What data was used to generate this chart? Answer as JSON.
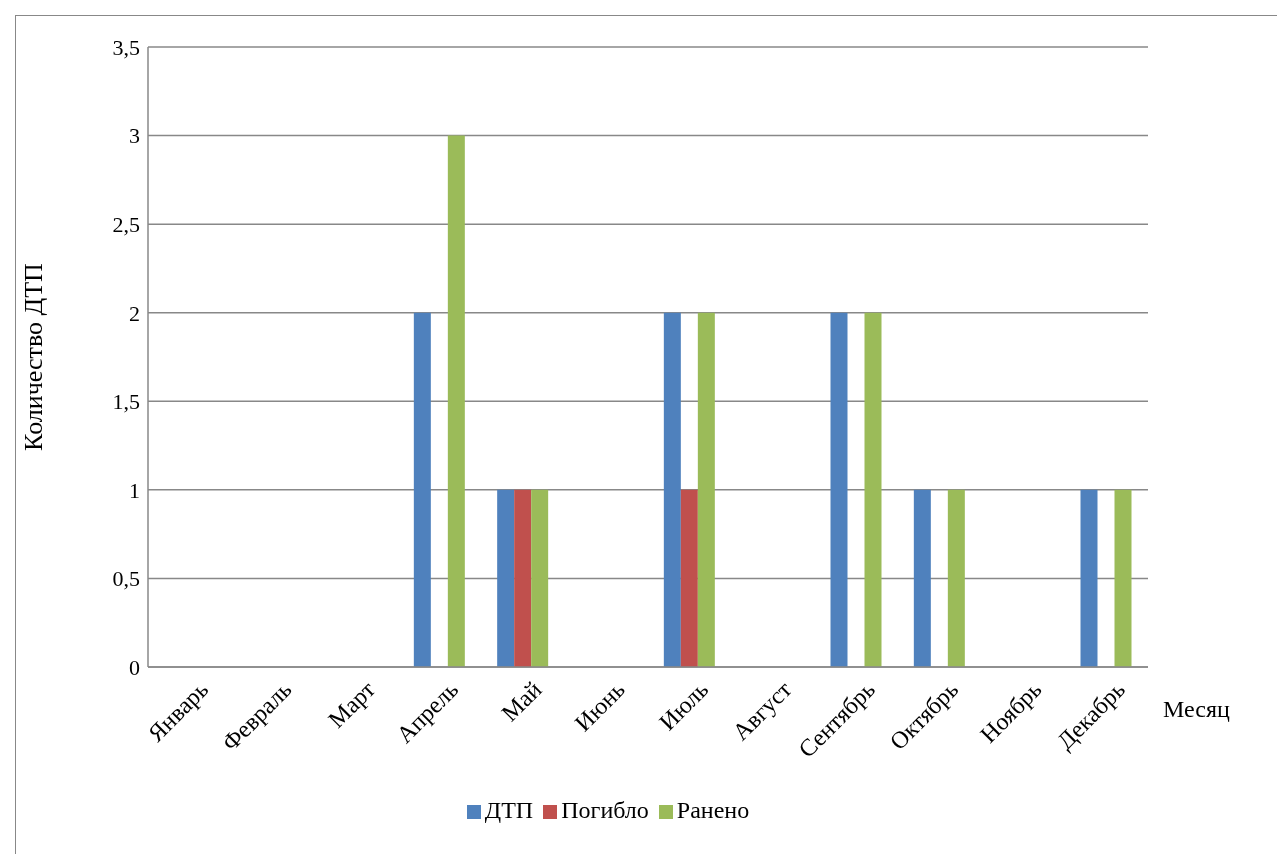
{
  "chart_data": {
    "type": "bar",
    "xlabel": "Месяц",
    "ylabel": "Количество ДТП",
    "categories": [
      "Январь",
      "Февраль",
      "Март",
      "Апрель",
      "Май",
      "Июнь",
      "Июль",
      "Август",
      "Сентябрь",
      "Октябрь",
      "Ноябрь",
      "Декабрь"
    ],
    "series": [
      {
        "name": "ДТП",
        "color": "#4f81bd",
        "values": [
          0,
          0,
          0,
          2,
          1,
          0,
          2,
          0,
          2,
          1,
          0,
          1
        ]
      },
      {
        "name": "Погибло",
        "color": "#c0504d",
        "values": [
          0,
          0,
          0,
          0,
          1,
          0,
          1,
          0,
          0,
          0,
          0,
          0
        ]
      },
      {
        "name": "Ранено",
        "color": "#9bbb59",
        "values": [
          0,
          0,
          0,
          3,
          1,
          0,
          2,
          0,
          2,
          1,
          0,
          1
        ]
      }
    ],
    "ylim": [
      0,
      3.5
    ],
    "yticks": [
      0,
      {
        "value": 0.5,
        "label": "0,5"
      },
      1,
      {
        "value": 1.5,
        "label": "1,5"
      },
      2,
      {
        "value": 2.5,
        "label": "2,5"
      },
      3,
      {
        "value": 3.5,
        "label": "3,5"
      }
    ],
    "grid": "y",
    "legend": "bottom"
  }
}
